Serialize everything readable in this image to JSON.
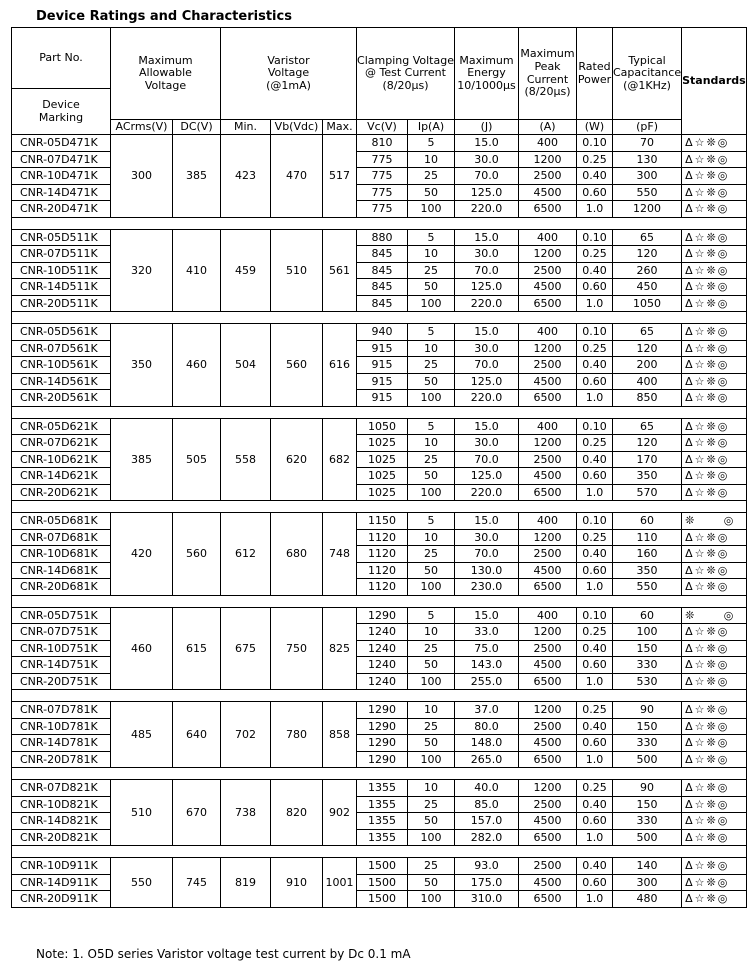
{
  "title": "Device Ratings and Characteristics",
  "header": {
    "part_no": "Part No.",
    "device_marking": "Device\nMarking",
    "max_allowable": "Maximum\nAllowable\nVoltage",
    "varistor": "Varistor\nVoltage\n(@1mA)",
    "clamping": "Clamping Voltage\n@ Test Current\n(8/20μs)",
    "energy": "Maximum\nEnergy\n10/1000μs",
    "peak": "Maximum\nPeak\nCurrent\n(8/20μs)",
    "rated": "Rated\nPower",
    "capacitance": "Typical\nCapacitance\n(@1KHz)",
    "standards": "Standards",
    "units": [
      "ACrms(V)",
      "DC(V)",
      "Min.",
      "Vb(Vdc)",
      "Max.",
      "Vc(V)",
      "Ip(A)",
      "(J)",
      "(A)",
      "(W)",
      "(pF)"
    ]
  },
  "groups": [
    {
      "shared": [
        "300",
        "385",
        "423",
        "470",
        "517"
      ],
      "rows": [
        [
          "CNR-05D471K",
          "810",
          "5",
          "15.0",
          "400",
          "0.10",
          "70",
          "Δ☆❊◎"
        ],
        [
          "CNR-07D471K",
          "775",
          "10",
          "30.0",
          "1200",
          "0.25",
          "130",
          "Δ☆❊◎"
        ],
        [
          "CNR-10D471K",
          "775",
          "25",
          "70.0",
          "2500",
          "0.40",
          "300",
          "Δ☆❊◎"
        ],
        [
          "CNR-14D471K",
          "775",
          "50",
          "125.0",
          "4500",
          "0.60",
          "550",
          "Δ☆❊◎"
        ],
        [
          "CNR-20D471K",
          "775",
          "100",
          "220.0",
          "6500",
          "1.0",
          "1200",
          "Δ☆❊◎"
        ]
      ]
    },
    {
      "shared": [
        "320",
        "410",
        "459",
        "510",
        "561"
      ],
      "rows": [
        [
          "CNR-05D511K",
          "880",
          "5",
          "15.0",
          "400",
          "0.10",
          "65",
          "Δ☆❊◎"
        ],
        [
          "CNR-07D511K",
          "845",
          "10",
          "30.0",
          "1200",
          "0.25",
          "120",
          "Δ☆❊◎"
        ],
        [
          "CNR-10D511K",
          "845",
          "25",
          "70.0",
          "2500",
          "0.40",
          "260",
          "Δ☆❊◎"
        ],
        [
          "CNR-14D511K",
          "845",
          "50",
          "125.0",
          "4500",
          "0.60",
          "450",
          "Δ☆❊◎"
        ],
        [
          "CNR-20D511K",
          "845",
          "100",
          "220.0",
          "6500",
          "1.0",
          "1050",
          "Δ☆❊◎"
        ]
      ]
    },
    {
      "shared": [
        "350",
        "460",
        "504",
        "560",
        "616"
      ],
      "rows": [
        [
          "CNR-05D561K",
          "940",
          "5",
          "15.0",
          "400",
          "0.10",
          "65",
          "Δ☆❊◎"
        ],
        [
          "CNR-07D561K",
          "915",
          "10",
          "30.0",
          "1200",
          "0.25",
          "120",
          "Δ☆❊◎"
        ],
        [
          "CNR-10D561K",
          "915",
          "25",
          "70.0",
          "2500",
          "0.40",
          "200",
          "Δ☆❊◎"
        ],
        [
          "CNR-14D561K",
          "915",
          "50",
          "125.0",
          "4500",
          "0.60",
          "400",
          "Δ☆❊◎"
        ],
        [
          "CNR-20D561K",
          "915",
          "100",
          "220.0",
          "6500",
          "1.0",
          "850",
          "Δ☆❊◎"
        ]
      ]
    },
    {
      "shared": [
        "385",
        "505",
        "558",
        "620",
        "682"
      ],
      "rows": [
        [
          "CNR-05D621K",
          "1050",
          "5",
          "15.0",
          "400",
          "0.10",
          "65",
          "Δ☆❊◎"
        ],
        [
          "CNR-07D621K",
          "1025",
          "10",
          "30.0",
          "1200",
          "0.25",
          "120",
          "Δ☆❊◎"
        ],
        [
          "CNR-10D621K",
          "1025",
          "25",
          "70.0",
          "2500",
          "0.40",
          "170",
          "Δ☆❊◎"
        ],
        [
          "CNR-14D621K",
          "1025",
          "50",
          "125.0",
          "4500",
          "0.60",
          "350",
          "Δ☆❊◎"
        ],
        [
          "CNR-20D621K",
          "1025",
          "100",
          "220.0",
          "6500",
          "1.0",
          "570",
          "Δ☆❊◎"
        ]
      ]
    },
    {
      "shared": [
        "420",
        "560",
        "612",
        "680",
        "748"
      ],
      "rows": [
        [
          "CNR-05D681K",
          "1150",
          "5",
          "15.0",
          "400",
          "0.10",
          "60",
          "❊     ◎"
        ],
        [
          "CNR-07D681K",
          "1120",
          "10",
          "30.0",
          "1200",
          "0.25",
          "110",
          "Δ☆❊◎"
        ],
        [
          "CNR-10D681K",
          "1120",
          "25",
          "70.0",
          "2500",
          "0.40",
          "160",
          "Δ☆❊◎"
        ],
        [
          "CNR-14D681K",
          "1120",
          "50",
          "130.0",
          "4500",
          "0.60",
          "350",
          "Δ☆❊◎"
        ],
        [
          "CNR-20D681K",
          "1120",
          "100",
          "230.0",
          "6500",
          "1.0",
          "550",
          "Δ☆❊◎"
        ]
      ]
    },
    {
      "shared": [
        "460",
        "615",
        "675",
        "750",
        "825"
      ],
      "rows": [
        [
          "CNR-05D751K",
          "1290",
          "5",
          "15.0",
          "400",
          "0.10",
          "60",
          "❊     ◎"
        ],
        [
          "CNR-07D751K",
          "1240",
          "10",
          "33.0",
          "1200",
          "0.25",
          "100",
          "Δ☆❊◎"
        ],
        [
          "CNR-10D751K",
          "1240",
          "25",
          "75.0",
          "2500",
          "0.40",
          "150",
          "Δ☆❊◎"
        ],
        [
          "CNR-14D751K",
          "1240",
          "50",
          "143.0",
          "4500",
          "0.60",
          "330",
          "Δ☆❊◎"
        ],
        [
          "CNR-20D751K",
          "1240",
          "100",
          "255.0",
          "6500",
          "1.0",
          "530",
          "Δ☆❊◎"
        ]
      ]
    },
    {
      "shared": [
        "485",
        "640",
        "702",
        "780",
        "858"
      ],
      "rows": [
        [
          "CNR-07D781K",
          "1290",
          "10",
          "37.0",
          "1200",
          "0.25",
          "90",
          "Δ☆❊◎"
        ],
        [
          "CNR-10D781K",
          "1290",
          "25",
          "80.0",
          "2500",
          "0.40",
          "150",
          "Δ☆❊◎"
        ],
        [
          "CNR-14D781K",
          "1290",
          "50",
          "148.0",
          "4500",
          "0.60",
          "330",
          "Δ☆❊◎"
        ],
        [
          "CNR-20D781K",
          "1290",
          "100",
          "265.0",
          "6500",
          "1.0",
          "500",
          "Δ☆❊◎"
        ]
      ]
    },
    {
      "shared": [
        "510",
        "670",
        "738",
        "820",
        "902"
      ],
      "rows": [
        [
          "CNR-07D821K",
          "1355",
          "10",
          "40.0",
          "1200",
          "0.25",
          "90",
          "Δ☆❊◎"
        ],
        [
          "CNR-10D821K",
          "1355",
          "25",
          "85.0",
          "2500",
          "0.40",
          "150",
          "Δ☆❊◎"
        ],
        [
          "CNR-14D821K",
          "1355",
          "50",
          "157.0",
          "4500",
          "0.60",
          "330",
          "Δ☆❊◎"
        ],
        [
          "CNR-20D821K",
          "1355",
          "100",
          "282.0",
          "6500",
          "1.0",
          "500",
          "Δ☆❊◎"
        ]
      ]
    },
    {
      "shared": [
        "550",
        "745",
        "819",
        "910",
        "1001"
      ],
      "rows": [
        [
          "CNR-10D911K",
          "1500",
          "25",
          "93.0",
          "2500",
          "0.40",
          "140",
          "Δ☆❊◎"
        ],
        [
          "CNR-14D911K",
          "1500",
          "50",
          "175.0",
          "4500",
          "0.60",
          "300",
          "Δ☆❊◎"
        ],
        [
          "CNR-20D911K",
          "1500",
          "100",
          "310.0",
          "6500",
          "1.0",
          "480",
          "Δ☆❊◎"
        ]
      ]
    }
  ],
  "note": "Note: 1. O5D series Varistor voltage test current by Dc 0.1 mA"
}
